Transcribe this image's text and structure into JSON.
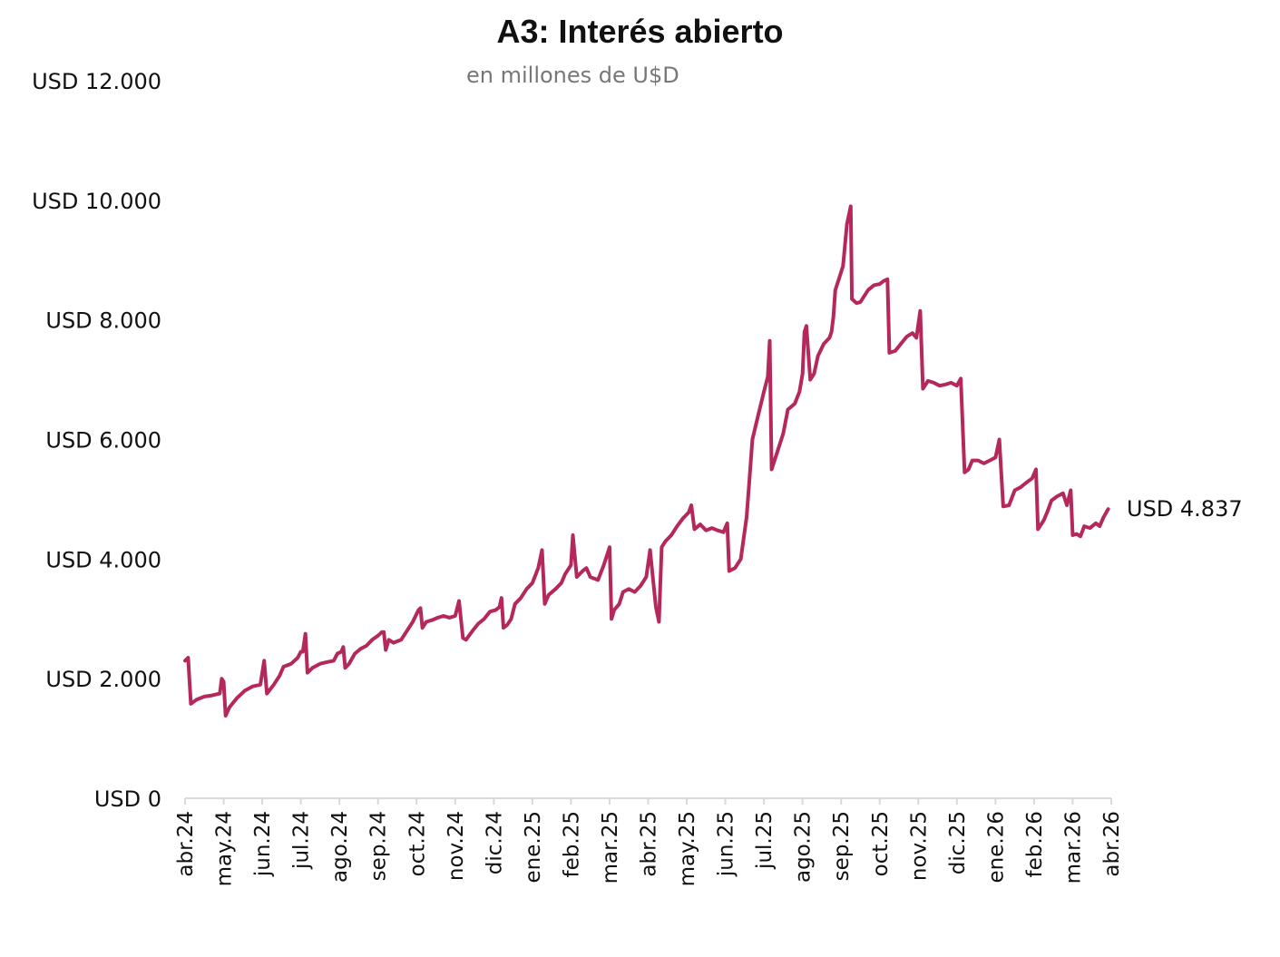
{
  "chart_data": {
    "type": "line",
    "title": "A3: Interés abierto",
    "subtitle": "en millones de U$D",
    "xlabel": "",
    "ylabel": "",
    "ylim": [
      0,
      12000
    ],
    "yticks": [
      0,
      2000,
      4000,
      6000,
      8000,
      10000,
      12000
    ],
    "ytick_labels": [
      "USD 0",
      "USD 2.000",
      "USD 4.000",
      "USD 6.000",
      "USD 8.000",
      "USD 10.000",
      "USD 12.000"
    ],
    "xtick_labels": [
      "abr.24",
      "may.24",
      "jun.24",
      "jul.24",
      "ago.24",
      "sep.24",
      "oct.24",
      "nov.24",
      "dic.24",
      "ene.25",
      "feb.25",
      "mar.25",
      "abr.25",
      "may.25",
      "jun.25",
      "jul.25",
      "ago.25",
      "sep.25",
      "oct.25",
      "nov.25",
      "dic.25",
      "ene.26",
      "feb.26",
      "mar.26",
      "abr.26"
    ],
    "grid": false,
    "legend": "none",
    "line_color": "#B5285B",
    "end_label": "USD 4.837",
    "series": [
      {
        "values": [
          [
            0.0,
            2300
          ],
          [
            0.08,
            2350
          ],
          [
            0.15,
            1580
          ],
          [
            0.3,
            1650
          ],
          [
            0.5,
            1700
          ],
          [
            0.7,
            1720
          ],
          [
            0.9,
            1750
          ],
          [
            0.95,
            2000
          ],
          [
            1.0,
            1950
          ],
          [
            1.05,
            1380
          ],
          [
            1.15,
            1520
          ],
          [
            1.35,
            1680
          ],
          [
            1.55,
            1800
          ],
          [
            1.75,
            1870
          ],
          [
            1.95,
            1900
          ],
          [
            2.05,
            2300
          ],
          [
            2.12,
            1750
          ],
          [
            2.3,
            1900
          ],
          [
            2.45,
            2050
          ],
          [
            2.55,
            2200
          ],
          [
            2.75,
            2250
          ],
          [
            2.92,
            2350
          ],
          [
            3.0,
            2450
          ],
          [
            3.05,
            2450
          ],
          [
            3.12,
            2750
          ],
          [
            3.17,
            2100
          ],
          [
            3.3,
            2180
          ],
          [
            3.5,
            2250
          ],
          [
            3.7,
            2280
          ],
          [
            3.85,
            2300
          ],
          [
            3.95,
            2420
          ],
          [
            4.05,
            2450
          ],
          [
            4.1,
            2530
          ],
          [
            4.15,
            2180
          ],
          [
            4.25,
            2250
          ],
          [
            4.4,
            2420
          ],
          [
            4.55,
            2500
          ],
          [
            4.7,
            2550
          ],
          [
            4.85,
            2650
          ],
          [
            5.0,
            2720
          ],
          [
            5.1,
            2780
          ],
          [
            5.15,
            2780
          ],
          [
            5.2,
            2480
          ],
          [
            5.28,
            2650
          ],
          [
            5.4,
            2600
          ],
          [
            5.6,
            2650
          ],
          [
            5.75,
            2800
          ],
          [
            5.9,
            2950
          ],
          [
            6.05,
            3150
          ],
          [
            6.1,
            3180
          ],
          [
            6.15,
            2850
          ],
          [
            6.25,
            2950
          ],
          [
            6.4,
            2980
          ],
          [
            6.55,
            3020
          ],
          [
            6.7,
            3050
          ],
          [
            6.85,
            3020
          ],
          [
            7.0,
            3050
          ],
          [
            7.1,
            3300
          ],
          [
            7.2,
            2680
          ],
          [
            7.28,
            2650
          ],
          [
            7.45,
            2800
          ],
          [
            7.6,
            2920
          ],
          [
            7.75,
            3000
          ],
          [
            7.9,
            3120
          ],
          [
            8.05,
            3150
          ],
          [
            8.15,
            3200
          ],
          [
            8.2,
            3350
          ],
          [
            8.25,
            2850
          ],
          [
            8.35,
            2900
          ],
          [
            8.45,
            3000
          ],
          [
            8.55,
            3250
          ],
          [
            8.7,
            3350
          ],
          [
            8.85,
            3500
          ],
          [
            9.0,
            3600
          ],
          [
            9.15,
            3850
          ],
          [
            9.25,
            4150
          ],
          [
            9.32,
            3250
          ],
          [
            9.42,
            3400
          ],
          [
            9.6,
            3500
          ],
          [
            9.75,
            3600
          ],
          [
            9.85,
            3750
          ],
          [
            9.95,
            3850
          ],
          [
            10.0,
            3900
          ],
          [
            10.05,
            4400
          ],
          [
            10.15,
            3700
          ],
          [
            10.3,
            3800
          ],
          [
            10.4,
            3850
          ],
          [
            10.5,
            3700
          ],
          [
            10.7,
            3650
          ],
          [
            10.85,
            3900
          ],
          [
            11.0,
            4200
          ],
          [
            11.05,
            3000
          ],
          [
            11.12,
            3150
          ],
          [
            11.25,
            3250
          ],
          [
            11.35,
            3450
          ],
          [
            11.5,
            3500
          ],
          [
            11.65,
            3450
          ],
          [
            11.8,
            3550
          ],
          [
            11.95,
            3700
          ],
          [
            12.05,
            4150
          ],
          [
            12.2,
            3200
          ],
          [
            12.28,
            2950
          ],
          [
            12.35,
            4200
          ],
          [
            12.45,
            4300
          ],
          [
            12.6,
            4400
          ],
          [
            12.75,
            4550
          ],
          [
            12.9,
            4680
          ],
          [
            13.05,
            4780
          ],
          [
            13.12,
            4900
          ],
          [
            13.2,
            4500
          ],
          [
            13.35,
            4580
          ],
          [
            13.5,
            4480
          ],
          [
            13.65,
            4520
          ],
          [
            13.8,
            4480
          ],
          [
            13.95,
            4450
          ],
          [
            14.05,
            4600
          ],
          [
            14.1,
            3800
          ],
          [
            14.25,
            3850
          ],
          [
            14.4,
            4000
          ],
          [
            14.55,
            4700
          ],
          [
            14.62,
            5300
          ],
          [
            14.7,
            6000
          ],
          [
            14.85,
            6400
          ],
          [
            15.0,
            6800
          ],
          [
            15.1,
            7050
          ],
          [
            15.15,
            7650
          ],
          [
            15.2,
            5500
          ],
          [
            15.35,
            5800
          ],
          [
            15.5,
            6100
          ],
          [
            15.62,
            6500
          ],
          [
            15.8,
            6600
          ],
          [
            15.92,
            6800
          ],
          [
            16.0,
            7100
          ],
          [
            16.05,
            7800
          ],
          [
            16.1,
            7900
          ],
          [
            16.2,
            7000
          ],
          [
            16.3,
            7100
          ],
          [
            16.4,
            7400
          ],
          [
            16.55,
            7600
          ],
          [
            16.7,
            7700
          ],
          [
            16.75,
            7800
          ],
          [
            16.8,
            8050
          ],
          [
            16.85,
            8500
          ],
          [
            16.95,
            8700
          ],
          [
            17.05,
            8900
          ],
          [
            17.15,
            9600
          ],
          [
            17.25,
            9900
          ],
          [
            17.28,
            8350
          ],
          [
            17.4,
            8280
          ],
          [
            17.5,
            8300
          ],
          [
            17.6,
            8400
          ],
          [
            17.7,
            8500
          ],
          [
            17.85,
            8580
          ],
          [
            18.0,
            8600
          ],
          [
            18.1,
            8650
          ],
          [
            18.2,
            8680
          ],
          [
            18.25,
            7450
          ],
          [
            18.4,
            7480
          ],
          [
            18.55,
            7600
          ],
          [
            18.7,
            7720
          ],
          [
            18.85,
            7780
          ],
          [
            18.95,
            7700
          ],
          [
            19.05,
            8150
          ],
          [
            19.12,
            6850
          ],
          [
            19.25,
            6980
          ],
          [
            19.4,
            6950
          ],
          [
            19.55,
            6900
          ],
          [
            19.7,
            6920
          ],
          [
            19.85,
            6950
          ],
          [
            20.0,
            6900
          ],
          [
            20.1,
            7020
          ],
          [
            20.2,
            5450
          ],
          [
            20.3,
            5500
          ],
          [
            20.4,
            5650
          ],
          [
            20.55,
            5650
          ],
          [
            20.7,
            5600
          ],
          [
            20.85,
            5650
          ],
          [
            21.0,
            5700
          ],
          [
            21.1,
            6000
          ],
          [
            21.2,
            4880
          ],
          [
            21.35,
            4900
          ],
          [
            21.5,
            5150
          ],
          [
            21.65,
            5200
          ],
          [
            21.8,
            5280
          ],
          [
            21.95,
            5350
          ],
          [
            22.05,
            5500
          ],
          [
            22.1,
            4500
          ],
          [
            22.25,
            4650
          ],
          [
            22.35,
            4800
          ],
          [
            22.45,
            4980
          ],
          [
            22.6,
            5050
          ],
          [
            22.75,
            5100
          ],
          [
            22.85,
            4900
          ],
          [
            22.95,
            5150
          ],
          [
            23.0,
            4400
          ],
          [
            23.1,
            4420
          ],
          [
            23.2,
            4380
          ],
          [
            23.3,
            4550
          ],
          [
            23.45,
            4520
          ],
          [
            23.6,
            4600
          ],
          [
            23.7,
            4550
          ],
          [
            23.8,
            4700
          ],
          [
            23.92,
            4837
          ]
        ]
      }
    ]
  }
}
